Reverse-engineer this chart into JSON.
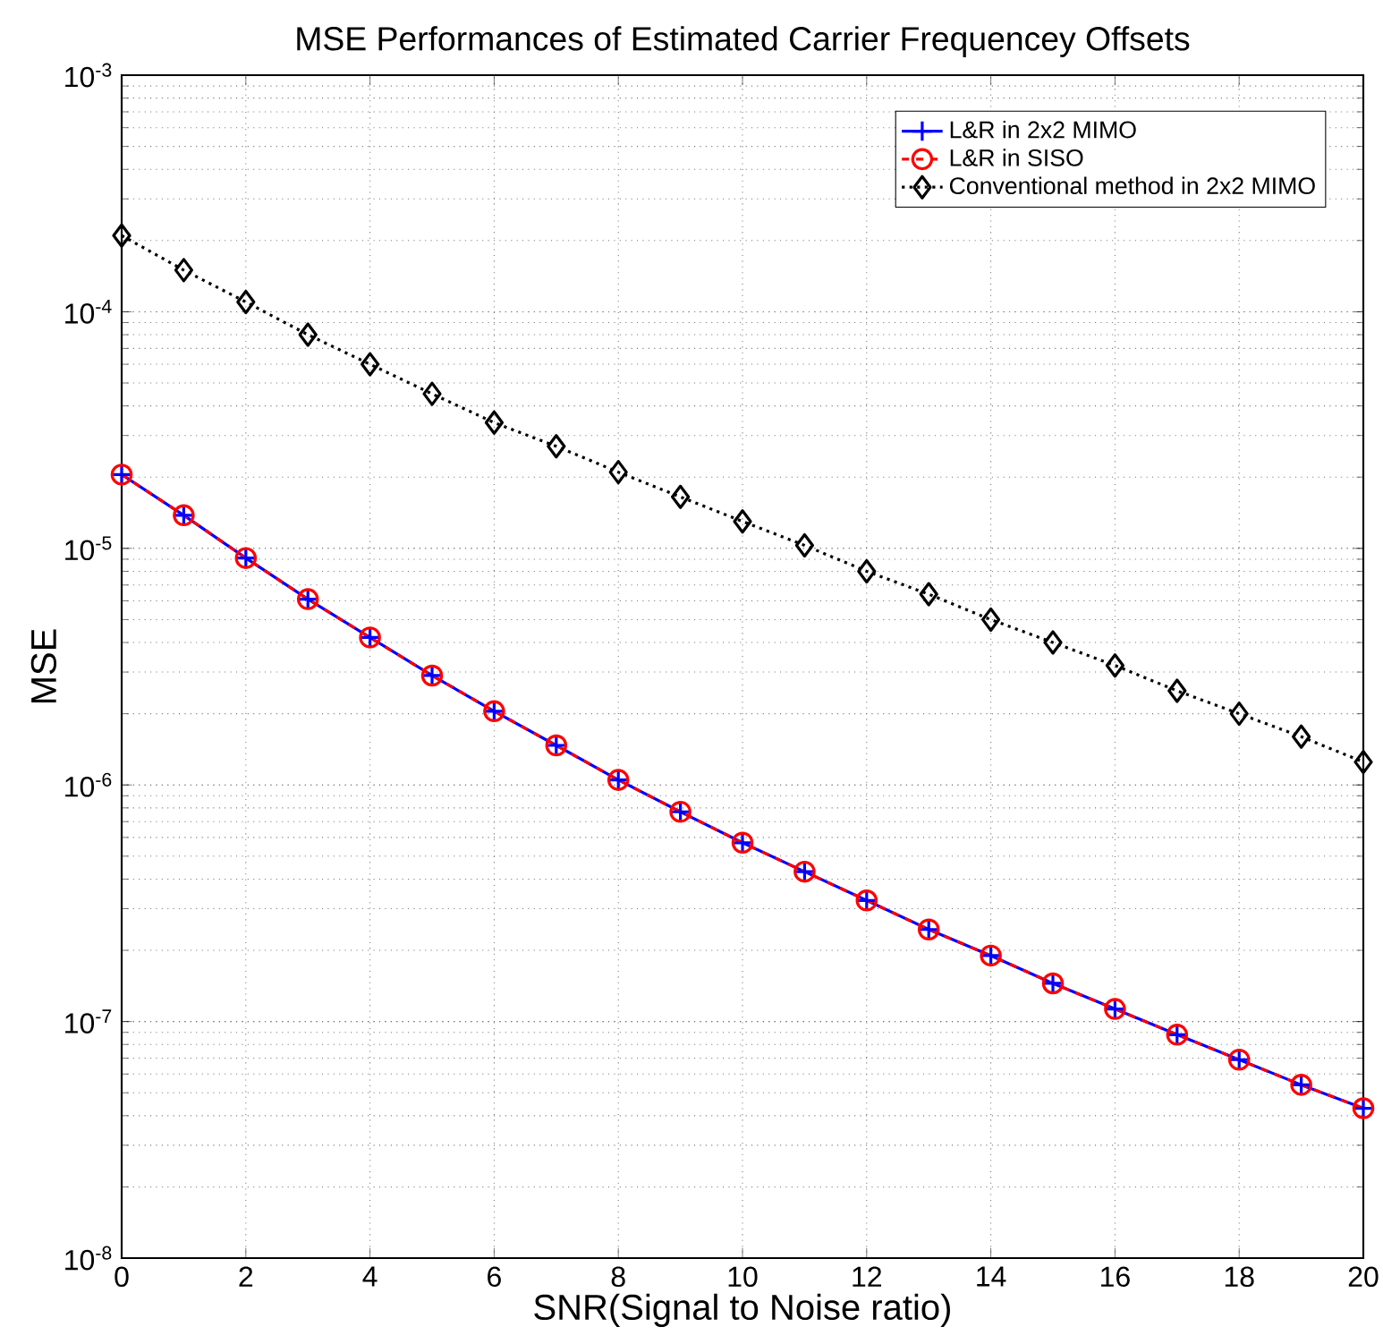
{
  "chart_data": {
    "type": "line",
    "title": "MSE Performances of Estimated Carrier Frequencey Offsets",
    "xlabel": "SNR(Signal to Noise ratio)",
    "ylabel": "MSE",
    "log": "y",
    "grid": true,
    "legend": "top right",
    "x": [
      0,
      1,
      2,
      3,
      4,
      5,
      6,
      7,
      8,
      9,
      10,
      11,
      12,
      13,
      14,
      15,
      16,
      17,
      18,
      19,
      20
    ],
    "xlim": [
      0,
      20
    ],
    "xticks": [
      0,
      2,
      4,
      6,
      8,
      10,
      12,
      14,
      16,
      18,
      20
    ],
    "ylim": [
      1e-08,
      0.001
    ],
    "yticks": [
      {
        "value": 1e-08,
        "label": "10$^{-8}$"
      },
      {
        "value": 1e-07,
        "label": "10$^{-7}$"
      },
      {
        "value": 1e-06,
        "label": "10$^{-6}$"
      },
      {
        "value": 1e-05,
        "label": "10$^{-5}$"
      },
      {
        "value": 0.0001,
        "label": "10$^{-4}$"
      },
      {
        "value": 0.001,
        "label": "10$^{-3}$"
      }
    ],
    "series": [
      {
        "name": "L&R in 2x2 MIMO",
        "color": "#0000ff",
        "marker": "cross",
        "line_style": "solid",
        "values": [
          2.05e-05,
          1.38e-05,
          9.1e-06,
          6.1e-06,
          4.2e-06,
          2.9e-06,
          2.05e-06,
          1.47e-06,
          1.05e-06,
          7.7e-07,
          5.7e-07,
          4.3e-07,
          3.25e-07,
          2.45e-07,
          1.9e-07,
          1.45e-07,
          1.13e-07,
          8.8e-08,
          6.9e-08,
          5.4e-08,
          4.3e-08
        ]
      },
      {
        "name": "L&R in SISO",
        "color": "#ff0000",
        "marker": "circle",
        "line_style": "dashed",
        "values": [
          2.05e-05,
          1.38e-05,
          9.1e-06,
          6.1e-06,
          4.2e-06,
          2.9e-06,
          2.05e-06,
          1.47e-06,
          1.05e-06,
          7.7e-07,
          5.7e-07,
          4.3e-07,
          3.25e-07,
          2.45e-07,
          1.9e-07,
          1.45e-07,
          1.13e-07,
          8.8e-08,
          6.9e-08,
          5.4e-08,
          4.3e-08
        ]
      },
      {
        "name": "Conventional method in 2x2 MIMO",
        "color": "#000000",
        "marker": "diamond",
        "line_style": "dotted",
        "values": [
          0.00021,
          0.00015,
          0.00011,
          8e-05,
          6e-05,
          4.5e-05,
          3.4e-05,
          2.7e-05,
          2.1e-05,
          1.65e-05,
          1.3e-05,
          1.03e-05,
          8e-06,
          6.4e-06,
          5e-06,
          4e-06,
          3.2e-06,
          2.5e-06,
          2e-06,
          1.6e-06,
          1.25e-06
        ]
      }
    ]
  }
}
